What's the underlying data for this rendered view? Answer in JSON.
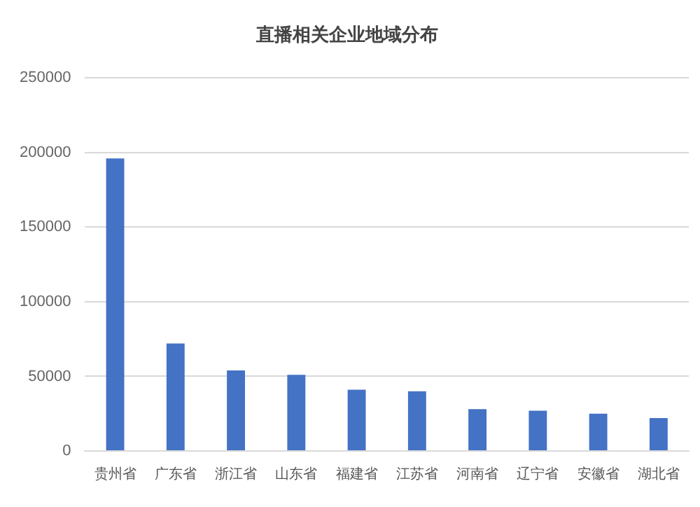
{
  "chart_data": {
    "type": "bar",
    "title": "直播相关企业地域分布",
    "categories": [
      "贵州省",
      "广东省",
      "浙江省",
      "山东省",
      "福建省",
      "江苏省",
      "河南省",
      "辽宁省",
      "安徽省",
      "湖北省"
    ],
    "values": [
      196000,
      72000,
      54000,
      51000,
      41000,
      40000,
      28000,
      27000,
      25000,
      22000
    ],
    "color": "#4472c4",
    "ylim": [
      0,
      250000
    ],
    "yticks": [
      0,
      50000,
      100000,
      150000,
      200000,
      250000
    ],
    "grid": "y"
  }
}
